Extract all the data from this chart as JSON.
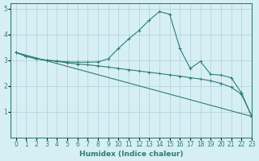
{
  "xlabel": "Humidex (Indice chaleur)",
  "background_color": "#d6eff5",
  "grid_color": "#b0cdd4",
  "line_color": "#2e7d72",
  "xlim": [
    -0.5,
    23
  ],
  "ylim": [
    0,
    5.2
  ],
  "xticks": [
    0,
    1,
    2,
    3,
    4,
    5,
    6,
    7,
    8,
    9,
    10,
    11,
    12,
    13,
    14,
    15,
    16,
    17,
    18,
    19,
    20,
    21,
    22,
    23
  ],
  "yticks": [
    1,
    2,
    3,
    4,
    5
  ],
  "series1_x": [
    0,
    1,
    2,
    3,
    4,
    5,
    6,
    7,
    8,
    9,
    10,
    11,
    12,
    13,
    14,
    15,
    16,
    17,
    18,
    19,
    20,
    21,
    22,
    23
  ],
  "series1_y": [
    3.3,
    3.15,
    3.05,
    3.0,
    2.97,
    2.93,
    2.92,
    2.92,
    2.93,
    3.05,
    3.45,
    3.82,
    4.15,
    4.55,
    4.88,
    4.78,
    3.45,
    2.68,
    2.95,
    2.45,
    2.42,
    2.32,
    1.73,
    0.82
  ],
  "series2_x": [
    0,
    1,
    2,
    3,
    4,
    5,
    6,
    7,
    8,
    9,
    10,
    11,
    12,
    13,
    14,
    15,
    16,
    17,
    18,
    19,
    20,
    21,
    22,
    23
  ],
  "series2_y": [
    3.3,
    3.15,
    3.05,
    3.0,
    2.95,
    2.9,
    2.85,
    2.82,
    2.78,
    2.73,
    2.68,
    2.63,
    2.58,
    2.53,
    2.48,
    2.43,
    2.38,
    2.32,
    2.27,
    2.2,
    2.1,
    1.95,
    1.68,
    0.82
  ],
  "series3_x": [
    0,
    23
  ],
  "series3_y": [
    3.3,
    0.82
  ]
}
